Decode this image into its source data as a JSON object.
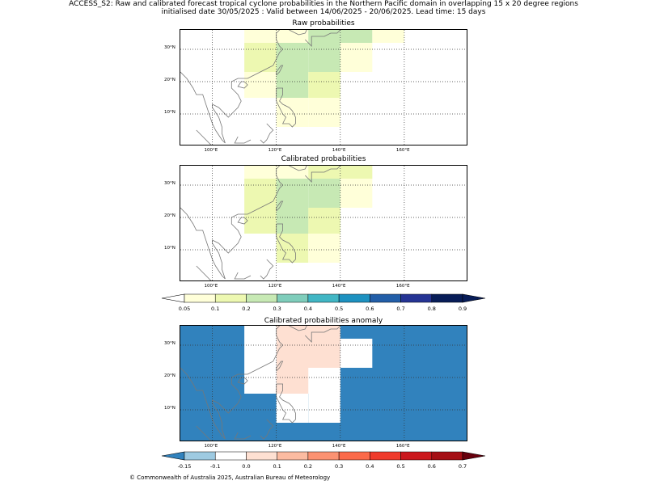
{
  "header": {
    "line1": "ACCESS_S2: Raw and calibrated forecast tropical cyclone probabilities in the Northern Pacific domain in overlapping 15 x 20 degree regions",
    "line2": "initialised date 30/05/2025 :  Valid between 14/06/2025 - 20/06/2025. Lead time: 15 days"
  },
  "footer": "© Commonwealth of Australia 2025, Australian Bureau of Meteorology",
  "colors": {
    "prob": [
      "#ffffd9",
      "#edf8b1",
      "#c7e9b4",
      "#7fcdbb",
      "#41b6c4",
      "#1d91c0",
      "#225ea8",
      "#253494",
      "#081d58"
    ],
    "prob_under": "#ffffff",
    "anom": [
      "#9ecae1",
      "#ffffff",
      "#fee0d2",
      "#fcbba1",
      "#fc9272",
      "#fb6a4a",
      "#ef3b2c",
      "#cb181d",
      "#a50f15"
    ],
    "anom_under": "#3182bd",
    "anom_over": "#67000d",
    "prob_over": "#081d58",
    "land": "#777777"
  },
  "chart_data": [
    {
      "type": "heatmap",
      "title": "Raw probabilities",
      "xticks": [
        "100°E",
        "120°E",
        "140°E",
        "160°E"
      ],
      "yticks": [
        "10°N",
        "20°N",
        "30°N"
      ],
      "xlim": [
        90,
        180
      ],
      "ylim": [
        0,
        36
      ],
      "grid": true,
      "cells": [
        {
          "lon": [
            110,
            120
          ],
          "lat": [
            32,
            36
          ],
          "value": 0.08
        },
        {
          "lon": [
            120,
            130
          ],
          "lat": [
            32,
            36
          ],
          "value": 0.08
        },
        {
          "lon": [
            130,
            140
          ],
          "lat": [
            32,
            36
          ],
          "value": 0.2
        },
        {
          "lon": [
            140,
            150
          ],
          "lat": [
            32,
            36
          ],
          "value": 0.2
        },
        {
          "lon": [
            150,
            160
          ],
          "lat": [
            32,
            36
          ],
          "value": 0.08
        },
        {
          "lon": [
            110,
            120
          ],
          "lat": [
            23,
            32
          ],
          "value": 0.12
        },
        {
          "lon": [
            120,
            130
          ],
          "lat": [
            23,
            32
          ],
          "value": 0.2
        },
        {
          "lon": [
            130,
            140
          ],
          "lat": [
            23,
            32
          ],
          "value": 0.2
        },
        {
          "lon": [
            140,
            150
          ],
          "lat": [
            23,
            32
          ],
          "value": 0.07
        },
        {
          "lon": [
            110,
            120
          ],
          "lat": [
            15,
            23
          ],
          "value": 0.07
        },
        {
          "lon": [
            120,
            130
          ],
          "lat": [
            15,
            23
          ],
          "value": 0.2
        },
        {
          "lon": [
            130,
            140
          ],
          "lat": [
            15,
            23
          ],
          "value": 0.12
        },
        {
          "lon": [
            120,
            130
          ],
          "lat": [
            6,
            15
          ],
          "value": 0.07
        },
        {
          "lon": [
            130,
            140
          ],
          "lat": [
            6,
            15
          ],
          "value": 0.07
        }
      ]
    },
    {
      "type": "heatmap",
      "title": "Calibrated probabilities",
      "xticks": [
        "100°E",
        "120°E",
        "140°E",
        "160°E"
      ],
      "yticks": [
        "10°N",
        "20°N",
        "30°N"
      ],
      "xlim": [
        90,
        180
      ],
      "ylim": [
        0,
        36
      ],
      "grid": true,
      "cells": [
        {
          "lon": [
            110,
            120
          ],
          "lat": [
            32,
            36
          ],
          "value": 0.08
        },
        {
          "lon": [
            120,
            130
          ],
          "lat": [
            32,
            36
          ],
          "value": 0.08
        },
        {
          "lon": [
            130,
            140
          ],
          "lat": [
            32,
            36
          ],
          "value": 0.12
        },
        {
          "lon": [
            140,
            150
          ],
          "lat": [
            32,
            36
          ],
          "value": 0.12
        },
        {
          "lon": [
            110,
            120
          ],
          "lat": [
            15,
            32
          ],
          "value": 0.12
        },
        {
          "lon": [
            120,
            130
          ],
          "lat": [
            15,
            32
          ],
          "value": 0.2
        },
        {
          "lon": [
            130,
            140
          ],
          "lat": [
            15,
            32
          ],
          "value": 0.2
        },
        {
          "lon": [
            140,
            150
          ],
          "lat": [
            23,
            32
          ],
          "value": 0.07
        },
        {
          "lon": [
            130,
            140
          ],
          "lat": [
            15,
            23
          ],
          "value": 0.12
        },
        {
          "lon": [
            120,
            130
          ],
          "lat": [
            6,
            15
          ],
          "value": 0.12
        },
        {
          "lon": [
            130,
            140
          ],
          "lat": [
            6,
            15
          ],
          "value": 0.07
        }
      ]
    },
    {
      "type": "heatmap",
      "title": "Calibrated probabilities anomaly",
      "xticks": [
        "100°E",
        "120°E",
        "140°E",
        "160°E"
      ],
      "yticks": [
        "10°N",
        "20°N",
        "30°N"
      ],
      "xlim": [
        90,
        180
      ],
      "ylim": [
        0,
        36
      ],
      "grid": true,
      "background_value": -0.2,
      "cells": [
        {
          "lon": [
            110,
            120
          ],
          "lat": [
            32,
            36
          ],
          "value": -0.1
        },
        {
          "lon": [
            120,
            130
          ],
          "lat": [
            32,
            36
          ],
          "value": -0.1
        },
        {
          "lon": [
            110,
            120
          ],
          "lat": [
            15,
            32
          ],
          "value": -0.05
        },
        {
          "lon": [
            120,
            140
          ],
          "lat": [
            15,
            36
          ],
          "value": 0.05
        },
        {
          "lon": [
            140,
            150
          ],
          "lat": [
            23,
            32
          ],
          "value": -0.1
        },
        {
          "lon": [
            130,
            140
          ],
          "lat": [
            15,
            23
          ],
          "value": -0.05
        },
        {
          "lon": [
            120,
            130
          ],
          "lat": [
            6,
            15
          ],
          "value": -0.05
        },
        {
          "lon": [
            130,
            140
          ],
          "lat": [
            6,
            15
          ],
          "value": -0.1
        }
      ]
    }
  ],
  "colorbar_prob": {
    "labels": [
      "0.05",
      "0.1",
      "0.2",
      "0.3",
      "0.4",
      "0.5",
      "0.6",
      "0.7",
      "0.8",
      "0.9"
    ]
  },
  "colorbar_anom": {
    "labels": [
      "-0.15",
      "-0.1",
      "0.0",
      "0.1",
      "0.2",
      "0.3",
      "0.4",
      "0.5",
      "0.6",
      "0.7"
    ]
  }
}
